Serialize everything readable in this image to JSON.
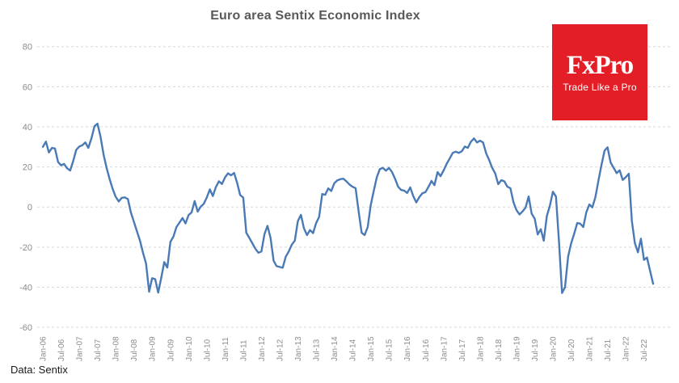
{
  "title": "Euro area Sentix Economic Index",
  "footer": "Data: Sentix",
  "logo": {
    "brand": "FxPro",
    "tagline": "Trade Like a Pro",
    "bg_color": "#e41e26",
    "text_color": "#ffffff"
  },
  "chart_data": {
    "type": "line",
    "title": "Euro area Sentix Economic Index",
    "xlabel": "",
    "ylabel": "",
    "frequency": "monthly",
    "start_label": "Jan-06",
    "end_label": "Oct-22",
    "ylim": [
      -60,
      80
    ],
    "grid": "dashed-horizontal",
    "legend": "none",
    "colors": {
      "line": "#4a7ab5",
      "gridline": "#d9d9d9",
      "axis_labels": "#8c8c8c",
      "title": "#595959"
    },
    "y_ticks": [
      80,
      60,
      40,
      20,
      0,
      -20,
      -40,
      -60
    ],
    "x_tick_labels": [
      "Jan-06",
      "Jul-06",
      "Jan-07",
      "Jul-07",
      "Jan-08",
      "Jul-08",
      "Jan-09",
      "Jul-09",
      "Jan-10",
      "Jul-10",
      "Jan-11",
      "Jul-11",
      "Jan-12",
      "Jul-12",
      "Jan-13",
      "Jul-13",
      "Jan-14",
      "Jul-14",
      "Jan-15",
      "Jul-15",
      "Jan-16",
      "Jul-16",
      "Jan-17",
      "Jul-17",
      "Jan-18",
      "Jul-18",
      "Jan-19",
      "Jul-19",
      "Jan-20",
      "Jul-20",
      "Jan-21",
      "Jul-21",
      "Jan-22",
      "Jul-22"
    ],
    "x_tick_interval_months": 6,
    "values": [
      30.0,
      32.6,
      27.2,
      29.5,
      29.2,
      22.5,
      20.8,
      21.5,
      19.3,
      18.2,
      23.0,
      28.5,
      30.2,
      30.8,
      32.2,
      29.5,
      34.2,
      40.3,
      41.6,
      35.0,
      26.2,
      19.5,
      14.0,
      9.0,
      5.1,
      2.8,
      4.6,
      4.8,
      4.0,
      -2.7,
      -7.4,
      -12.1,
      -16.8,
      -22.8,
      -28.2,
      -42.3,
      -35.5,
      -36.0,
      -42.7,
      -35.3,
      -27.5,
      -30.2,
      -17.4,
      -14.8,
      -10.0,
      -7.8,
      -5.5,
      -8.2,
      -4.0,
      -2.7,
      3.0,
      -2.3,
      0.2,
      1.6,
      4.7,
      8.8,
      5.5,
      10.0,
      12.8,
      11.5,
      14.8,
      16.8,
      15.8,
      17.0,
      12.0,
      6.0,
      4.7,
      -12.8,
      -15.4,
      -18.1,
      -20.8,
      -22.8,
      -22.2,
      -13.5,
      -9.4,
      -15.4,
      -26.8,
      -29.5,
      -29.9,
      -30.3,
      -24.8,
      -22.2,
      -18.8,
      -16.8,
      -7.0,
      -3.9,
      -10.6,
      -14.0,
      -11.5,
      -13.0,
      -8.1,
      -4.9,
      6.5,
      6.1,
      9.3,
      8.0,
      11.9,
      13.3,
      13.9,
      14.1,
      12.8,
      11.2,
      10.1,
      9.4,
      -2.0,
      -12.8,
      -14.0,
      -10.0,
      0.9,
      8.1,
      14.9,
      18.9,
      19.5,
      18.1,
      19.5,
      17.5,
      14.1,
      10.1,
      8.5,
      8.2,
      7.0,
      9.8,
      5.5,
      2.3,
      4.9,
      6.8,
      7.4,
      10.0,
      13.0,
      10.9,
      17.4,
      15.4,
      18.2,
      21.5,
      24.2,
      27.0,
      27.6,
      27.0,
      27.8,
      30.2,
      29.5,
      32.6,
      34.2,
      32.2,
      33.1,
      32.2,
      26.8,
      23.5,
      19.5,
      16.8,
      11.4,
      13.4,
      12.8,
      10.1,
      9.4,
      2.4,
      -1.5,
      -3.7,
      -2.2,
      -0.3,
      5.3,
      -3.3,
      -5.8,
      -13.7,
      -11.1,
      -16.8,
      -4.5,
      0.7,
      7.6,
      5.2,
      -17.1,
      -42.9,
      -40.0,
      -24.8,
      -18.2,
      -13.4,
      -8.0,
      -8.3,
      -10.0,
      -2.7,
      1.3,
      -0.2,
      5.0,
      13.1,
      21.0,
      28.1,
      29.8,
      22.2,
      19.6,
      16.9,
      18.3,
      13.5,
      14.9,
      16.6,
      -7.0,
      -18.0,
      -22.6,
      -15.8,
      -26.4,
      -25.2,
      -31.8,
      -38.3
    ]
  }
}
